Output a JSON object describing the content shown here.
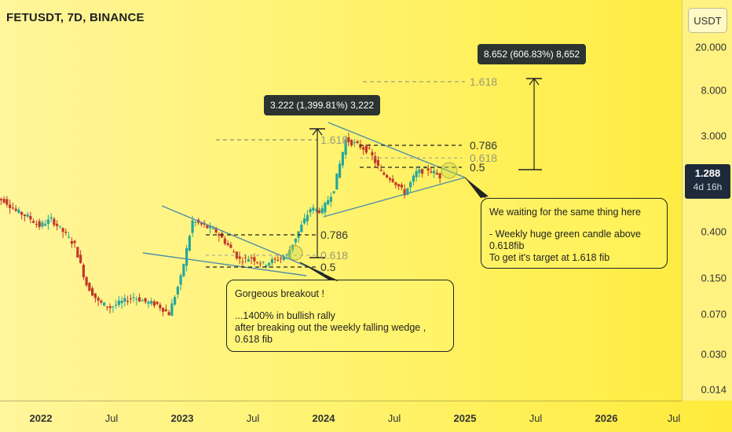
{
  "header": {
    "symbol": "FETUSDT, 7D, BINANCE",
    "currency": "USDT"
  },
  "price_badge": {
    "price": "1.288",
    "time": "4d 16h"
  },
  "y_ticks": [
    "20.000",
    "8.000",
    "3.000",
    "0.400",
    "0.150",
    "0.070",
    "0.030",
    "0.014"
  ],
  "x_ticks": [
    "2022",
    "Jul",
    "2023",
    "Jul",
    "2024",
    "Jul",
    "2025",
    "Jul",
    "2026",
    "Jul"
  ],
  "labels": {
    "measure_1": "3.222 (1,399.81%) 3,222",
    "measure_2": "8.652 (606.83%) 8,652",
    "fib_a_0786": "0.786",
    "fib_a_0618": "0.618",
    "fib_a_05": "0.5",
    "fib_b_1618": "1.618",
    "fib_b_0786": "0.786",
    "fib_b_0618": "0.618",
    "fib_b_05": "0.5",
    "fib_c_1618": "1.618",
    "callout_left_1": "Gorgeous breakout !",
    "callout_left_2": "...1400% in bullish rally",
    "callout_left_3": "after breaking out the weekly falling wedge , 0.618 fib",
    "callout_right_1": "We waiting for the same thing here",
    "callout_right_2": "- Weekly huge green candle above 0.618fib",
    "callout_right_3": "To get it's target at 1.618 fib"
  },
  "colors": {
    "up": "#26a69a",
    "down": "#c0392b",
    "trendline": "#4e8fa7",
    "background": "#fff370"
  },
  "chart_data": {
    "type": "candlestick",
    "title": "FETUSDT, 7D, BINANCE",
    "x_range": [
      "2021-09",
      "2026-09"
    ],
    "y_scale": "log",
    "ylim": [
      0.012,
      35
    ],
    "series": [
      {
        "name": "FETUSDT",
        "dates": [
          "2021-09",
          "2021-10",
          "2021-11",
          "2021-12",
          "2022-01",
          "2022-02",
          "2022-03",
          "2022-04",
          "2022-05",
          "2022-06",
          "2022-07",
          "2022-08",
          "2022-09",
          "2022-10",
          "2022-11",
          "2022-12",
          "2023-01",
          "2023-02",
          "2023-03",
          "2023-04",
          "2023-05",
          "2023-06",
          "2023-07",
          "2023-08",
          "2023-09",
          "2023-10",
          "2023-11",
          "2023-12",
          "2024-01",
          "2024-02",
          "2024-03",
          "2024-04",
          "2024-05",
          "2024-06",
          "2024-07",
          "2024-08",
          "2024-09",
          "2024-10",
          "2024-11"
        ],
        "close": [
          0.8,
          0.78,
          0.62,
          0.55,
          0.45,
          0.52,
          0.4,
          0.3,
          0.13,
          0.09,
          0.08,
          0.09,
          0.1,
          0.09,
          0.085,
          0.07,
          0.15,
          0.5,
          0.45,
          0.4,
          0.3,
          0.22,
          0.23,
          0.2,
          0.22,
          0.24,
          0.4,
          0.65,
          0.62,
          1.0,
          2.8,
          2.5,
          2.2,
          1.4,
          1.2,
          0.9,
          1.4,
          1.5,
          1.288
        ]
      }
    ],
    "annotations": {
      "move_1": "3.222 (1,399.81%) 3,222",
      "move_2": "8.652 (606.83%) 8,652",
      "fib_levels": [
        "0.5",
        "0.618",
        "0.786",
        "1.618"
      ]
    }
  }
}
